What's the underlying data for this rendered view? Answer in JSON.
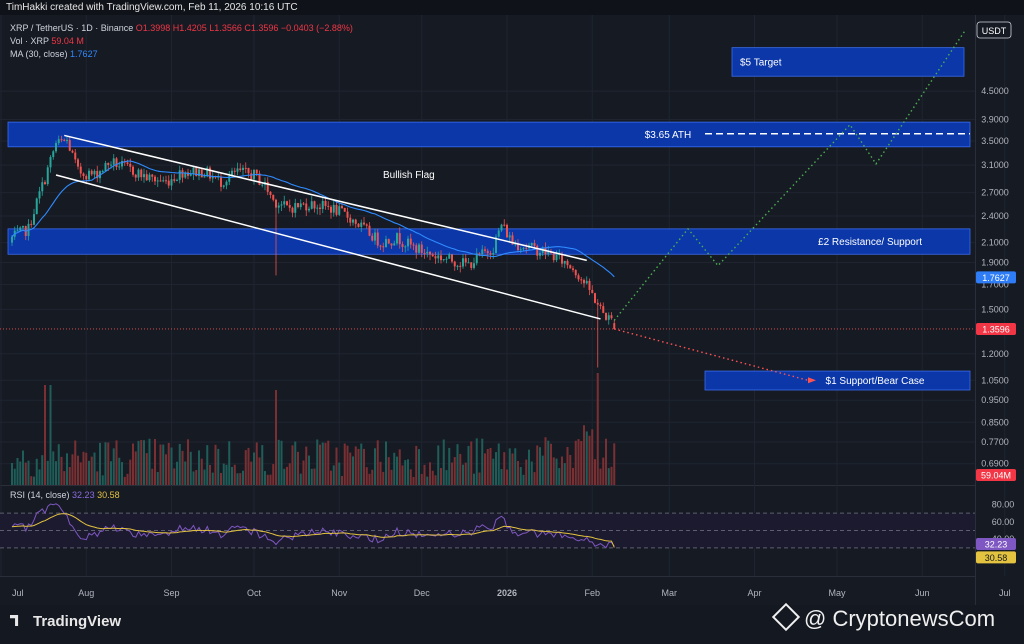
{
  "header": {
    "creator_line": "TimHakki created with TradingView.com, Feb 11, 2026 10:16 UTC",
    "symbol_line_prefix": "XRP / TetherUS · 1D · Binance",
    "ohlc": "O1.3998 H1.4205 L1.3566 C1.3596 −0.0403 (−2.88%)",
    "vol_label": "Vol · XRP",
    "vol_value": "59.04 M",
    "ma_label": "MA (30, close)",
    "ma_value": "1.7627",
    "rsi_label": "RSI (14, close)",
    "rsi_value": "32.23",
    "rsi_ma_value": "30.58"
  },
  "footer": {
    "logo_text": "TradingView",
    "credit": "@ CryptonewsCom"
  },
  "colors": {
    "zone_blue": "#0b37a8",
    "up": "#26a69a",
    "down": "#ef5350",
    "ma": "#2f8bff",
    "rsi": "#7e57c2",
    "rsi_ma": "#e3c340",
    "bull_path": "#4caf50",
    "bear_path": "#ff5252"
  },
  "chart_data": {
    "type": "candlestick",
    "symbol": "XRP / TetherUS",
    "interval": "1D",
    "exchange": "Binance",
    "currency_label": "USDT",
    "price_axis": {
      "scale": "log",
      "range": [
        0.62,
        6.6
      ],
      "ticks": [
        "4.5000",
        "3.9000",
        "3.5000",
        "3.1000",
        "2.7000",
        "2.4000",
        "2.1000",
        "1.9000",
        "1.7000",
        "1.5000",
        "1.2000",
        "1.0500",
        "0.9500",
        "0.8500",
        "0.7700",
        "0.6900"
      ]
    },
    "time_axis": {
      "labels": [
        "Jul",
        "Aug",
        "Sep",
        "Oct",
        "Nov",
        "Dec",
        "2026",
        "Feb",
        "Mar",
        "Apr",
        "May",
        "Jun",
        "Jul"
      ]
    },
    "last_price": "1.3596",
    "ma_last": "1.7627",
    "volume_last": "59.04 M",
    "rsi_axis": {
      "range": [
        0,
        100
      ],
      "ticks": [
        "80.00",
        "60.00",
        "40.00"
      ]
    },
    "rsi_last": "32.23",
    "rsi_ma_last": "30.58",
    "annotations": {
      "title": "Bullish Flag",
      "zones": [
        {
          "label": "$5 Target",
          "low": 4.85,
          "high": 5.6
        },
        {
          "label": "$3.65 ATH",
          "low": 3.4,
          "high": 3.85
        },
        {
          "label": "£2 Resistance/ Support",
          "low": 1.98,
          "high": 2.25
        },
        {
          "label": "$1 Support/Bear Case",
          "low": 1.0,
          "high": 1.1
        }
      ]
    }
  }
}
